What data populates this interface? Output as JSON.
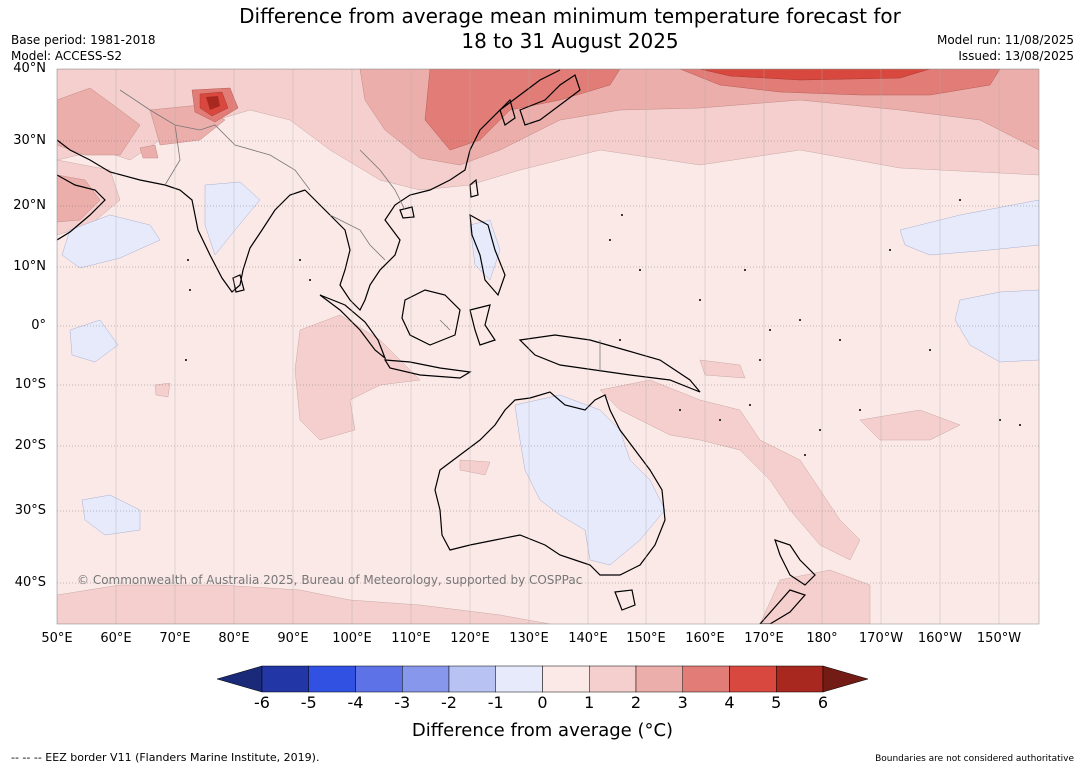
{
  "title": {
    "line1": "Difference from average mean minimum temperature forecast for",
    "line2": "18 to 31 August 2025"
  },
  "meta_left": {
    "base_period": "Base period: 1981-2018",
    "model": "Model: ACCESS-S2"
  },
  "meta_right": {
    "model_run": "Model run: 11/08/2025",
    "issued": "Issued: 13/08/2025"
  },
  "map": {
    "region": "Indo-Pacific",
    "lat_labels": [
      "40°N",
      "30°N",
      "20°N",
      "10°N",
      "0°",
      "10°S",
      "20°S",
      "30°S",
      "40°S"
    ],
    "lon_labels": [
      "50°E",
      "60°E",
      "70°E",
      "80°E",
      "90°E",
      "100°E",
      "110°E",
      "120°E",
      "130°E",
      "140°E",
      "150°E",
      "160°E",
      "170°E",
      "180°",
      "170°W",
      "160°W",
      "150°W"
    ],
    "graticule": true,
    "background_anomaly_class": "0 to 1",
    "copyright": "© Commonwealth of Australia 2025, Bureau of Meteorology, supported by COSPPac"
  },
  "colorbar": {
    "ticks": [
      "-6",
      "-5",
      "-4",
      "-3",
      "-2",
      "-1",
      "0",
      "1",
      "2",
      "3",
      "4",
      "5",
      "6"
    ],
    "colors": [
      "#2236a6",
      "#3151e2",
      "#5c72e6",
      "#8797ec",
      "#b9c3f3",
      "#e6eafb",
      "#fbe9e8",
      "#f4cfcd",
      "#ecaeab",
      "#e27c76",
      "#d8483e",
      "#a8271f"
    ],
    "extend_low_color": "#1b2a78",
    "extend_high_color": "#731b15",
    "label": "Difference from average (°C)"
  },
  "footer": {
    "left": "--  --  -- EEZ border V11 (Flanders Marine Institute, 2019).",
    "right": "Boundaries are not considered authoritative"
  }
}
